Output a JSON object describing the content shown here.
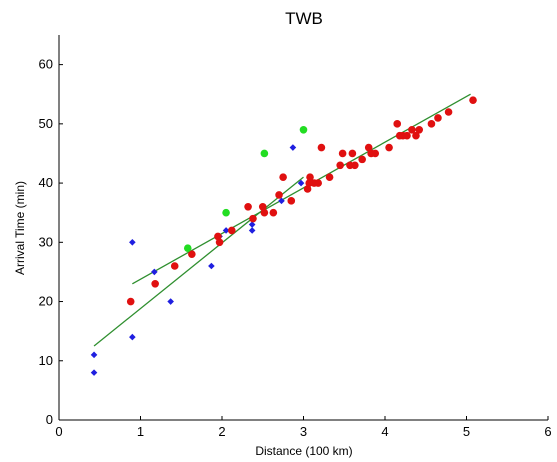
{
  "chart_data": {
    "type": "scatter",
    "title": "TWB",
    "xlabel": "Distance  (100 km)",
    "ylabel": "Arrival Time (min)",
    "xlim": [
      0,
      6
    ],
    "ylim": [
      0,
      65
    ],
    "xticks": [
      "0",
      "1",
      "2",
      "3",
      "4",
      "5",
      "6"
    ],
    "yticks": [
      "0",
      "10",
      "20",
      "30",
      "40",
      "50",
      "60"
    ],
    "grid": false,
    "colors": {
      "blue": "#1f1fe0",
      "red": "#e01010",
      "green": "#22dd22",
      "line": "#2f8f2f"
    },
    "series": [
      {
        "color": "blue",
        "points": [
          [
            0.43,
            11
          ],
          [
            0.43,
            8
          ],
          [
            0.9,
            30
          ],
          [
            0.9,
            14
          ],
          [
            1.17,
            25
          ],
          [
            1.37,
            20
          ],
          [
            1.87,
            26
          ],
          [
            1.97,
            31
          ],
          [
            2.05,
            32
          ],
          [
            2.37,
            32
          ],
          [
            2.37,
            33
          ],
          [
            2.73,
            37
          ],
          [
            2.87,
            46
          ],
          [
            2.97,
            40
          ]
        ]
      },
      {
        "color": "red",
        "points": [
          [
            0.88,
            20
          ],
          [
            1.18,
            23
          ],
          [
            1.42,
            26
          ],
          [
            1.63,
            28
          ],
          [
            1.95,
            31
          ],
          [
            1.97,
            30
          ],
          [
            2.12,
            32
          ],
          [
            2.32,
            36
          ],
          [
            2.38,
            34
          ],
          [
            2.5,
            36
          ],
          [
            2.52,
            35
          ],
          [
            2.63,
            35
          ],
          [
            2.7,
            38
          ],
          [
            2.75,
            41
          ],
          [
            2.85,
            37
          ],
          [
            3.05,
            39
          ],
          [
            3.07,
            40
          ],
          [
            3.08,
            41
          ],
          [
            3.13,
            40
          ],
          [
            3.18,
            40
          ],
          [
            3.22,
            46
          ],
          [
            3.32,
            41
          ],
          [
            3.45,
            43
          ],
          [
            3.48,
            45
          ],
          [
            3.57,
            43
          ],
          [
            3.6,
            45
          ],
          [
            3.63,
            43
          ],
          [
            3.72,
            44
          ],
          [
            3.8,
            46
          ],
          [
            3.83,
            45
          ],
          [
            3.88,
            45
          ],
          [
            4.05,
            46
          ],
          [
            4.15,
            50
          ],
          [
            4.18,
            48
          ],
          [
            4.22,
            48
          ],
          [
            4.27,
            48
          ],
          [
            4.33,
            49
          ],
          [
            4.38,
            48
          ],
          [
            4.42,
            49
          ],
          [
            4.57,
            50
          ],
          [
            4.65,
            51
          ],
          [
            4.78,
            52
          ],
          [
            5.08,
            54
          ]
        ]
      },
      {
        "color": "green",
        "points": [
          [
            1.58,
            29
          ],
          [
            2.05,
            35
          ],
          [
            2.52,
            45
          ],
          [
            3.0,
            49
          ]
        ]
      }
    ],
    "fit_lines": [
      {
        "from": [
          0.43,
          12.5
        ],
        "to": [
          3.0,
          41
        ]
      },
      {
        "from": [
          0.9,
          23
        ],
        "to": [
          5.05,
          55
        ]
      }
    ]
  }
}
